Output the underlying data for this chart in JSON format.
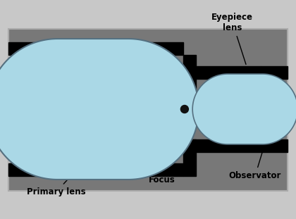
{
  "bg_outer": "#c8c8c8",
  "bg_inner": "#787878",
  "tube_color": "#000000",
  "light_wide": "#c0c0c0",
  "light_mid": "#d8d8d8",
  "light_bright": "#e8e8e8",
  "lens_fill": "#aad8e6",
  "lens_edge": "#557080",
  "arrow_color": "#ffffff",
  "focus_dot_color": "#111111",
  "labels": {
    "primary_lens": "Primary lens",
    "focus": "Focus",
    "eyepiece": "Eyepiece\nlens",
    "observator": "Observator"
  },
  "figsize": [
    4.2,
    3.11
  ],
  "dpi": 100
}
